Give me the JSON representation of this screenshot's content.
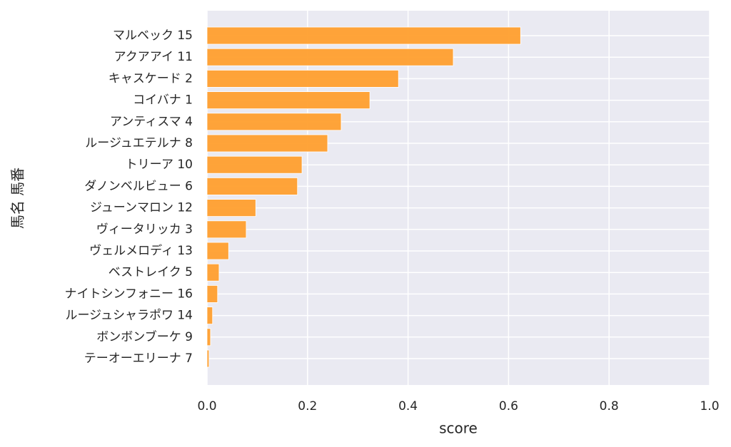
{
  "chart_data": {
    "type": "bar",
    "orientation": "horizontal",
    "categories": [
      "マルベック 15",
      "アクアアイ 11",
      "キャスケード 2",
      "コイバナ 1",
      "アンティスマ 4",
      "ルージュエテルナ 8",
      "トリーア 10",
      "ダノンベルビュー 6",
      "ジューンマロン 12",
      "ヴィータリッカ 3",
      "ヴェルメロディ 13",
      "ベストレイク 5",
      "ナイトシンフォニー 16",
      "ルージュシャラポワ 14",
      "ボンボンブーケ 9",
      "テーオーエリーナ 7"
    ],
    "values": [
      0.624,
      0.49,
      0.381,
      0.324,
      0.267,
      0.24,
      0.189,
      0.18,
      0.097,
      0.078,
      0.043,
      0.024,
      0.021,
      0.011,
      0.007,
      0.004
    ],
    "color": "#ff9f2e",
    "xlabel": "score",
    "ylabel": "馬名 馬番",
    "xlim": [
      0,
      1
    ],
    "xticks": [
      {
        "value": 0,
        "label": "0.0"
      },
      0.2,
      0.4,
      0.6,
      0.8,
      {
        "value": 1,
        "label": "1.0"
      }
    ],
    "grid": true
  }
}
